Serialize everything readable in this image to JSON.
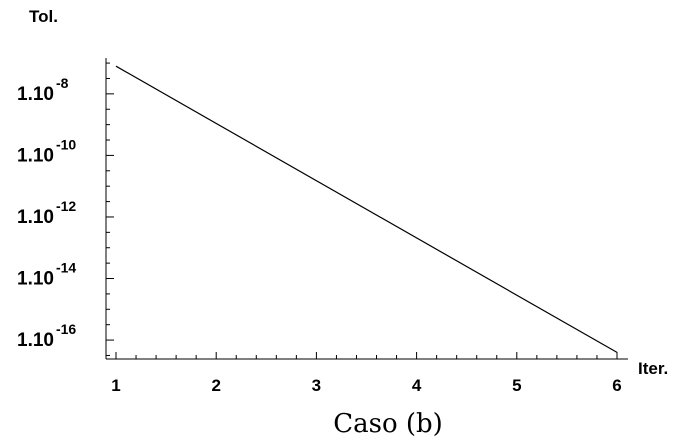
{
  "chart_data": {
    "type": "line",
    "caption": "Caso (b)",
    "ylabel": "Tol.",
    "xlabel": "Iter.",
    "y_scale": "log",
    "xlim": [
      1,
      6
    ],
    "ylim_exponent": [
      -16.55,
      -6.9
    ],
    "x_ticks": [
      1,
      2,
      3,
      4,
      5,
      6
    ],
    "y_ticks": [
      {
        "base": "1.10",
        "exp": "-8",
        "value": -8
      },
      {
        "base": "1.10",
        "exp": "-10",
        "value": -10
      },
      {
        "base": "1.10",
        "exp": "-12",
        "value": -12
      },
      {
        "base": "1.10",
        "exp": "-14",
        "value": -14
      },
      {
        "base": "1.10",
        "exp": "-16",
        "value": -16
      }
    ],
    "series": [
      {
        "x": [
          1,
          6
        ],
        "y_log10": [
          -7.1,
          -16.4
        ],
        "color": "#000000"
      }
    ]
  }
}
